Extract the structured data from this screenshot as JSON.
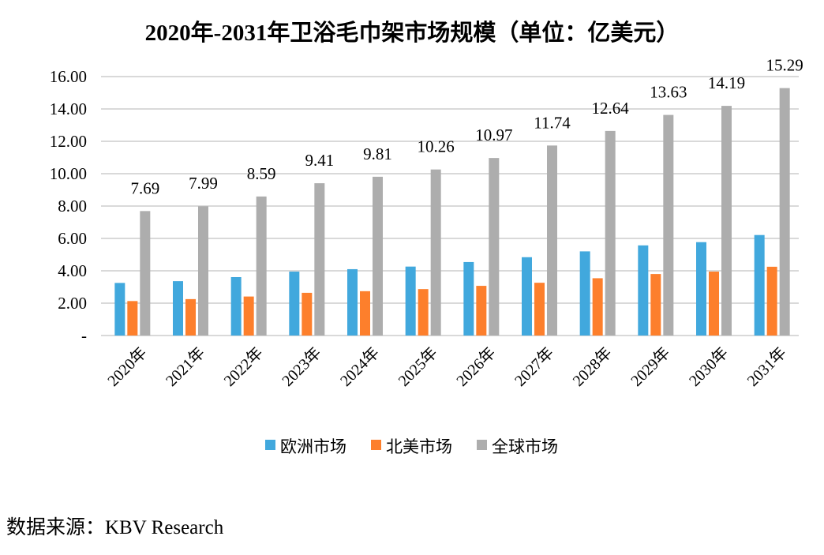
{
  "chart_data": {
    "type": "bar",
    "title": "2020年-2031年卫浴毛巾架市场规模（单位：亿美元）",
    "xlabel": "",
    "ylabel": "",
    "ylim": [
      0,
      16
    ],
    "yticks": [
      "-",
      "2.00",
      "4.00",
      "6.00",
      "8.00",
      "10.00",
      "12.00",
      "14.00",
      "16.00"
    ],
    "grid": true,
    "legend_position": "bottom",
    "categories": [
      "2020年",
      "2021年",
      "2022年",
      "2023年",
      "2024年",
      "2025年",
      "2026年",
      "2027年",
      "2028年",
      "2029年",
      "2030年",
      "2031年"
    ],
    "series": [
      {
        "name": "欧洲市场",
        "color": "#41a8dd",
        "values": [
          3.25,
          3.36,
          3.61,
          3.95,
          4.1,
          4.26,
          4.54,
          4.84,
          5.2,
          5.57,
          5.77,
          6.21
        ]
      },
      {
        "name": "北美市场",
        "color": "#fd7f2c",
        "values": [
          2.13,
          2.25,
          2.41,
          2.64,
          2.74,
          2.87,
          3.07,
          3.26,
          3.54,
          3.8,
          3.95,
          4.25
        ]
      },
      {
        "name": "全球市场",
        "color": "#adadad",
        "values": [
          7.69,
          7.99,
          8.59,
          9.41,
          9.81,
          10.26,
          10.97,
          11.74,
          12.64,
          13.63,
          14.19,
          15.29
        ],
        "labels": [
          "7.69",
          "7.99",
          "8.59",
          "9.41",
          "9.81",
          "10.26",
          "10.97",
          "11.74",
          "12.64",
          "13.63",
          "14.19",
          "15.29"
        ]
      }
    ]
  },
  "source": "数据来源：KBV Research"
}
